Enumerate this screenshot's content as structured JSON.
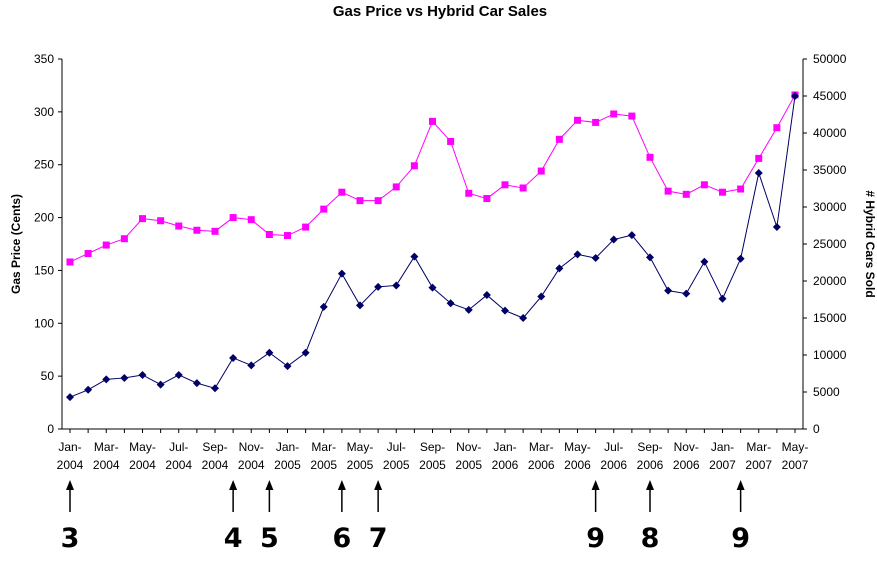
{
  "chart_data": {
    "type": "line",
    "title": "Gas Price vs Hybrid Car Sales",
    "ylabel_left": "Gas Price (Cents)",
    "ylabel_right": "# Hybrid Cars Sold",
    "ylim_left": [
      0,
      350
    ],
    "ylim_right": [
      0,
      50000
    ],
    "yticks_left": [
      0,
      50,
      100,
      150,
      200,
      250,
      300,
      350
    ],
    "yticks_right": [
      0,
      5000,
      10000,
      15000,
      20000,
      25000,
      30000,
      35000,
      40000,
      45000,
      50000
    ],
    "x_labels": [
      [
        "Jan-",
        "2004"
      ],
      [
        "Mar-",
        "2004"
      ],
      [
        "May-",
        "2004"
      ],
      [
        "Jul-",
        "2004"
      ],
      [
        "Sep-",
        "2004"
      ],
      [
        "Nov-",
        "2004"
      ],
      [
        "Jan-",
        "2005"
      ],
      [
        "Mar-",
        "2005"
      ],
      [
        "May-",
        "2005"
      ],
      [
        "Jul-",
        "2005"
      ],
      [
        "Sep-",
        "2005"
      ],
      [
        "Nov-",
        "2005"
      ],
      [
        "Jan-",
        "2006"
      ],
      [
        "Mar-",
        "2006"
      ],
      [
        "May-",
        "2006"
      ],
      [
        "Jul-",
        "2006"
      ],
      [
        "Sep-",
        "2006"
      ],
      [
        "Nov-",
        "2006"
      ],
      [
        "Jan-",
        "2007"
      ],
      [
        "Mar-",
        "2007"
      ],
      [
        "May-",
        "2007"
      ]
    ],
    "x": [
      "Jan-2004",
      "Feb-2004",
      "Mar-2004",
      "Apr-2004",
      "May-2004",
      "Jun-2004",
      "Jul-2004",
      "Aug-2004",
      "Sep-2004",
      "Oct-2004",
      "Nov-2004",
      "Dec-2004",
      "Jan-2005",
      "Feb-2005",
      "Mar-2005",
      "Apr-2005",
      "May-2005",
      "Jun-2005",
      "Jul-2005",
      "Aug-2005",
      "Sep-2005",
      "Oct-2005",
      "Nov-2005",
      "Dec-2005",
      "Jan-2006",
      "Feb-2006",
      "Mar-2006",
      "Apr-2006",
      "May-2006",
      "Jun-2006",
      "Jul-2006",
      "Aug-2006",
      "Sep-2006",
      "Oct-2006",
      "Nov-2006",
      "Dec-2006",
      "Jan-2007",
      "Feb-2007",
      "Mar-2007",
      "Apr-2007",
      "May-2007"
    ],
    "series": [
      {
        "axis": "left",
        "color": "#ff00ff",
        "marker": "square",
        "values": [
          158,
          166,
          174,
          180,
          199,
          197,
          192,
          188,
          187,
          200,
          198,
          184,
          183,
          191,
          208,
          224,
          216,
          216,
          229,
          249,
          291,
          272,
          223,
          218,
          231,
          228,
          244,
          274,
          292,
          290,
          298,
          296,
          257,
          225,
          222,
          231,
          224,
          227,
          256,
          285,
          316
        ]
      },
      {
        "axis": "right",
        "color": "#000066",
        "marker": "diamond",
        "values": [
          4300,
          5300,
          6700,
          6900,
          7300,
          6000,
          7300,
          6200,
          5500,
          9600,
          8600,
          10300,
          8500,
          10300,
          16500,
          21000,
          16700,
          19200,
          19400,
          23300,
          19100,
          17000,
          16100,
          18100,
          16000,
          15000,
          17900,
          21700,
          23600,
          23100,
          25600,
          26200,
          23200,
          18700,
          18300,
          22600,
          17600,
          23000,
          34600,
          27300,
          45000
        ]
      }
    ],
    "annotations": [
      {
        "label": "3",
        "x": "Jan-2004"
      },
      {
        "label": "4",
        "x": "Oct-2004"
      },
      {
        "label": "5",
        "x": "Dec-2004"
      },
      {
        "label": "6",
        "x": "Apr-2005"
      },
      {
        "label": "7",
        "x": "Jun-2005"
      },
      {
        "label": "9",
        "x": "Jun-2006"
      },
      {
        "label": "8",
        "x": "Sep-2006"
      },
      {
        "label": "9",
        "x": "Feb-2007"
      }
    ]
  }
}
